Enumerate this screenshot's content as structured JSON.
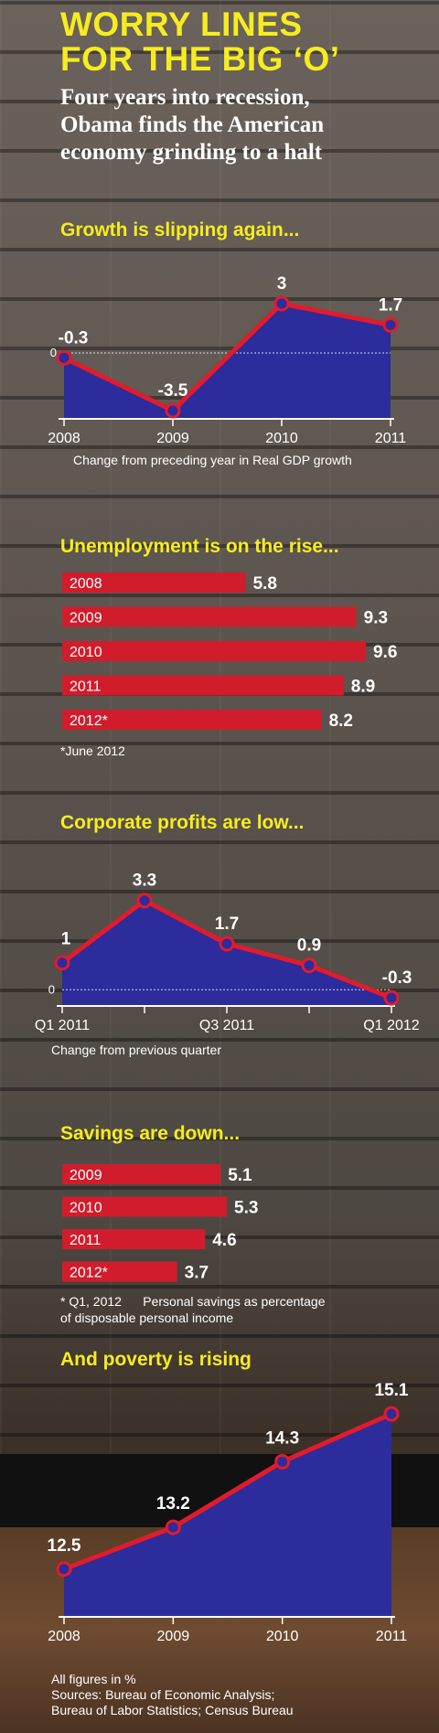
{
  "header": {
    "title_line1": "WORRY LINES",
    "title_line2": "FOR THE BIG ‘O’",
    "subtitle_line1": "Four years into recession,",
    "subtitle_line2": "Obama finds the American",
    "subtitle_line3": "economy grinding to a halt"
  },
  "colors": {
    "title_yellow": "#f6ec1f",
    "bar_red": "#d11d2b",
    "line_red": "#e21b2b",
    "area_blue": "#2c2c9c",
    "text_white": "#ffffff"
  },
  "sections": {
    "growth": {
      "title": "Growth is slipping again...",
      "note": "Change from preceding year in Real GDP growth"
    },
    "unemployment": {
      "title": "Unemployment is on the rise...",
      "note": "*June 2012"
    },
    "profits": {
      "title": "Corporate profits are low...",
      "note": "Change from previous quarter"
    },
    "savings": {
      "title": "Savings are down...",
      "note_line1": "* Q1, 2012      Personal savings as percentage",
      "note_line2": "of disposable personal income"
    },
    "poverty": {
      "title": "And poverty is rising"
    }
  },
  "footer": {
    "line1": "All figures in %",
    "line2": "Sources: Bureau of Economic Analysis;",
    "line3": "Bureau of Labor Statistics; Census Bureau"
  },
  "chart_data": [
    {
      "type": "area",
      "title": "Growth is slipping again...",
      "xlabel": "Change from preceding year in Real GDP growth",
      "categories": [
        "2008",
        "2009",
        "2010",
        "2011"
      ],
      "values": [
        -0.3,
        -3.5,
        3,
        1.7
      ],
      "value_labels": [
        "-0.3",
        "-3.5",
        "3",
        "1.7"
      ],
      "baseline_label": "0",
      "ylim": [
        -4,
        4.5
      ]
    },
    {
      "type": "bar",
      "title": "Unemployment is on the rise...",
      "categories": [
        "2008",
        "2009",
        "2010",
        "2011",
        "2012*"
      ],
      "values": [
        5.8,
        9.3,
        9.6,
        8.9,
        8.2
      ],
      "value_labels": [
        "5.8",
        "9.3",
        "9.6",
        "8.9",
        "8.2"
      ],
      "annotation": "*June 2012"
    },
    {
      "type": "area",
      "title": "Corporate profits are low...",
      "xlabel": "Change from previous quarter",
      "x_tick_labels": [
        "Q1 2011",
        "Q3 2011",
        "Q1 2012"
      ],
      "values": [
        1,
        3.3,
        1.7,
        0.9,
        -0.3
      ],
      "value_labels": [
        "1",
        "3.3",
        "1.7",
        "0.9",
        "-0.3"
      ],
      "baseline_label": "0",
      "ylim": [
        -0.6,
        4
      ]
    },
    {
      "type": "bar",
      "title": "Savings are down...",
      "categories": [
        "2009",
        "2010",
        "2011",
        "2012*"
      ],
      "values": [
        5.1,
        5.3,
        4.6,
        3.7
      ],
      "value_labels": [
        "5.1",
        "5.3",
        "4.6",
        "3.7"
      ],
      "annotation": "* Q1, 2012      Personal savings as percentage of disposable personal income"
    },
    {
      "type": "area",
      "title": "And poverty is rising",
      "categories": [
        "2008",
        "2009",
        "2010",
        "2011"
      ],
      "values": [
        12.5,
        13.2,
        14.3,
        15.1
      ],
      "value_labels": [
        "12.5",
        "13.2",
        "14.3",
        "15.1"
      ],
      "ylim": [
        11.7,
        15.5
      ]
    }
  ]
}
